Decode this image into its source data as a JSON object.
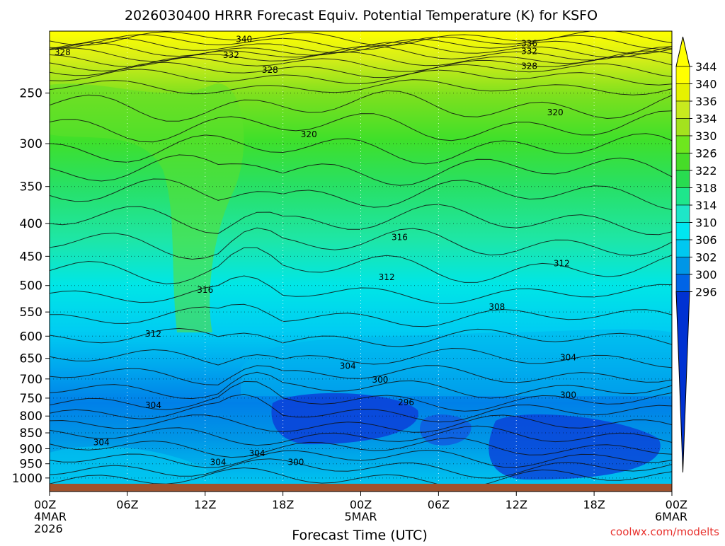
{
  "title": "2026030400 HRRR Forecast Equiv. Potential Temperature (K) for KSFO",
  "xlabel": "Forecast Time (UTC)",
  "credit": "coolwx.com/modelts",
  "chart_data": {
    "type": "heatmap",
    "title": "2026030400 HRRR Forecast Equiv. Potential Temperature (K) for KSFO",
    "xlabel": "Forecast Time (UTC)",
    "ylabel": "",
    "x_ticks": [
      {
        "h": 0,
        "lines": [
          "00Z",
          "4MAR",
          "2026"
        ]
      },
      {
        "h": 6,
        "lines": [
          "06Z"
        ]
      },
      {
        "h": 12,
        "lines": [
          "12Z"
        ]
      },
      {
        "h": 18,
        "lines": [
          "18Z"
        ]
      },
      {
        "h": 24,
        "lines": [
          "00Z",
          "5MAR"
        ]
      },
      {
        "h": 30,
        "lines": [
          "06Z"
        ]
      },
      {
        "h": 36,
        "lines": [
          "12Z"
        ]
      },
      {
        "h": 42,
        "lines": [
          "18Z"
        ]
      },
      {
        "h": 48,
        "lines": [
          "00Z",
          "6MAR"
        ]
      }
    ],
    "y_ticks": [
      "250",
      "300",
      "350",
      "400",
      "450",
      "500",
      "550",
      "600",
      "650",
      "700",
      "750",
      "800",
      "850",
      "900",
      "950",
      "1000"
    ],
    "xlim": [
      0,
      48
    ],
    "ylim": [
      1050,
      200
    ],
    "y_scale": "log",
    "grid": true,
    "colorbar": {
      "labels": [
        344,
        340,
        336,
        334,
        330,
        326,
        322,
        318,
        314,
        310,
        306,
        302,
        300,
        296
      ],
      "colors": [
        "#ffff00",
        "#e6f200",
        "#c8ea1e",
        "#a4e21e",
        "#6ee61e",
        "#46dc28",
        "#28dc50",
        "#1ee68c",
        "#1ee6c8",
        "#00e6f0",
        "#00c8f0",
        "#0096e6",
        "#0064e6",
        "#0032d2"
      ],
      "position": "right"
    },
    "contour_labels": [
      {
        "text": "340",
        "x": 15.0,
        "p": 206
      },
      {
        "text": "336",
        "x": 37.0,
        "p": 209
      },
      {
        "text": "332",
        "x": 37.0,
        "p": 215
      },
      {
        "text": "328",
        "x": 37.0,
        "p": 227
      },
      {
        "text": "328",
        "x": 1.0,
        "p": 216
      },
      {
        "text": "332",
        "x": 14.0,
        "p": 218
      },
      {
        "text": "328",
        "x": 17.0,
        "p": 230
      },
      {
        "text": "320",
        "x": 39.0,
        "p": 268
      },
      {
        "text": "320",
        "x": 20.0,
        "p": 290
      },
      {
        "text": "316",
        "x": 27.0,
        "p": 420
      },
      {
        "text": "316",
        "x": 12.0,
        "p": 508
      },
      {
        "text": "312",
        "x": 26.0,
        "p": 485
      },
      {
        "text": "312",
        "x": 39.5,
        "p": 462
      },
      {
        "text": "312",
        "x": 8.0,
        "p": 595
      },
      {
        "text": "308",
        "x": 34.5,
        "p": 540
      },
      {
        "text": "304",
        "x": 40.0,
        "p": 648
      },
      {
        "text": "304",
        "x": 23.0,
        "p": 668
      },
      {
        "text": "300",
        "x": 25.5,
        "p": 702
      },
      {
        "text": "300",
        "x": 40.0,
        "p": 742
      },
      {
        "text": "296",
        "x": 27.5,
        "p": 762
      },
      {
        "text": "304",
        "x": 8.0,
        "p": 770
      },
      {
        "text": "304",
        "x": 4.0,
        "p": 880
      },
      {
        "text": "304",
        "x": 13.0,
        "p": 945
      },
      {
        "text": "304",
        "x": 16.0,
        "p": 915
      },
      {
        "text": "300",
        "x": 19.0,
        "p": 945
      }
    ]
  }
}
